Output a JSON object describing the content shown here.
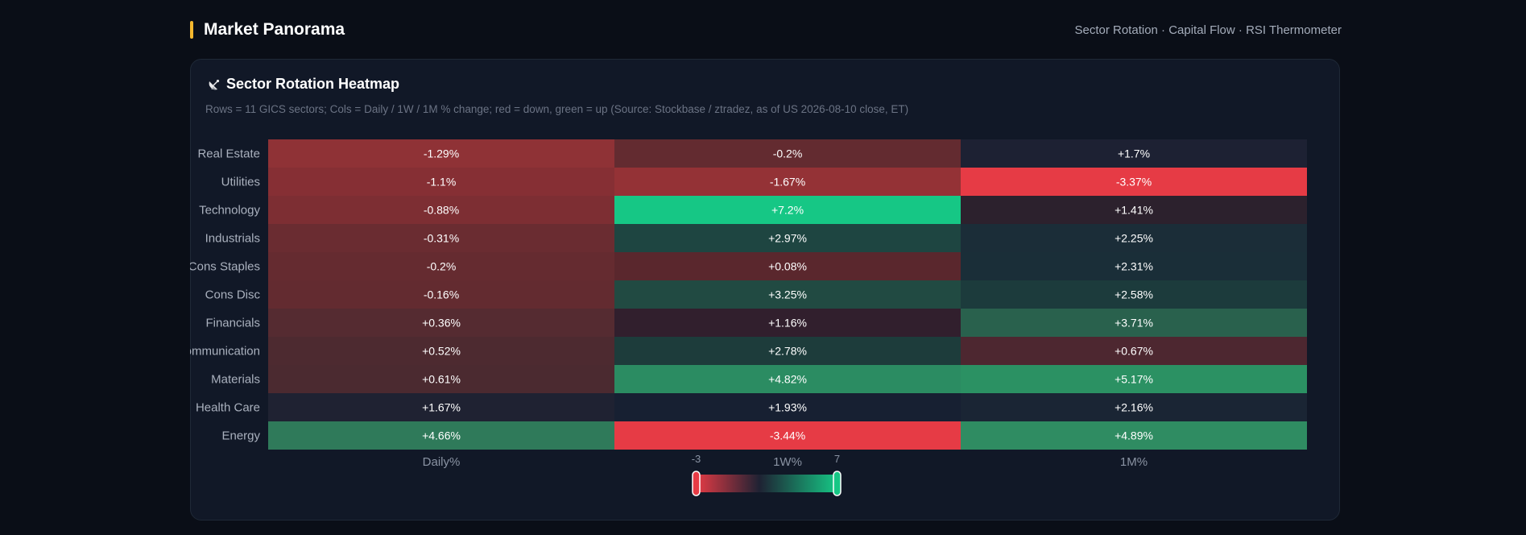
{
  "header": {
    "title": "Market Panorama",
    "subtitle": "Sector Rotation · Capital Flow · RSI Thermometer"
  },
  "panel": {
    "title": "Sector Rotation Heatmap",
    "icon": "satellite-dish-icon",
    "caption": "Rows = 11 GICS sectors; Cols = Daily / 1W / 1M % change; red = down, green = up (Source: Stockbase / ztradez, as of US 2026-08-10 close, ET)"
  },
  "chart_data": {
    "type": "heatmap",
    "rows": [
      "Real Estate",
      "Utilities",
      "Technology",
      "Industrials",
      "Cons Staples",
      "Cons Disc",
      "Financials",
      "Communication",
      "Materials",
      "Health Care",
      "Energy"
    ],
    "columns": [
      "Daily%",
      "1W%",
      "1M%"
    ],
    "values": [
      [
        -1.29,
        -0.2,
        1.7
      ],
      [
        -1.1,
        -1.67,
        -3.37
      ],
      [
        -0.88,
        7.2,
        1.41
      ],
      [
        -0.31,
        2.97,
        2.25
      ],
      [
        -0.2,
        0.08,
        2.31
      ],
      [
        -0.16,
        3.25,
        2.58
      ],
      [
        0.36,
        1.16,
        3.71
      ],
      [
        0.52,
        2.78,
        0.67
      ],
      [
        0.61,
        4.82,
        5.17
      ],
      [
        1.67,
        1.93,
        2.16
      ],
      [
        4.66,
        -3.44,
        4.89
      ]
    ],
    "labels": [
      [
        "-1.29%",
        "-0.2%",
        "+1.7%"
      ],
      [
        "-1.1%",
        "-1.67%",
        "-3.37%"
      ],
      [
        "-0.88%",
        "+7.2%",
        "+1.41%"
      ],
      [
        "-0.31%",
        "+2.97%",
        "+2.25%"
      ],
      [
        "-0.2%",
        "+0.08%",
        "+2.31%"
      ],
      [
        "-0.16%",
        "+3.25%",
        "+2.58%"
      ],
      [
        "+0.36%",
        "+1.16%",
        "+3.71%"
      ],
      [
        "+0.52%",
        "+2.78%",
        "+0.67%"
      ],
      [
        "+0.61%",
        "+4.82%",
        "+5.17%"
      ],
      [
        "+1.67%",
        "+1.93%",
        "+2.16%"
      ],
      [
        "+4.66%",
        "-3.44%",
        "+4.89%"
      ]
    ],
    "cell_colors": [
      [
        "#8f3236",
        "#632b30",
        "#1d2133"
      ],
      [
        "#862f34",
        "#943236",
        "#e63b45"
      ],
      [
        "#7d2e33",
        "#16c785",
        "#2c212d"
      ],
      [
        "#6a2c31",
        "#1e4541",
        "#1b2d38"
      ],
      [
        "#652b30",
        "#5a272d",
        "#1a2e38"
      ],
      [
        "#632b30",
        "#214a42",
        "#1c3b3c"
      ],
      [
        "#552b31",
        "#311f2d",
        "#29614d"
      ],
      [
        "#4d2a30",
        "#1d3c3b",
        "#4d2730"
      ],
      [
        "#4b2a30",
        "#2b8c62",
        "#2b9163"
      ],
      [
        "#1f2232",
        "#172032",
        "#1a2534"
      ],
      [
        "#2f7a5a",
        "#e63b45",
        "#2f8c62"
      ]
    ],
    "visual_map": {
      "min": -3,
      "max": 7,
      "min_label": "-3",
      "max_label": "7",
      "colors": [
        "#e63b45",
        "#1e2233",
        "#16c785"
      ]
    }
  }
}
